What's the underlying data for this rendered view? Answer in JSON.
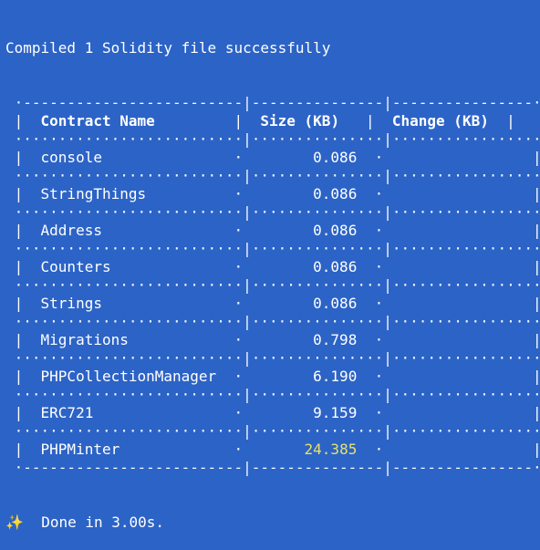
{
  "terminal": {
    "compile_message": "Compiled 1 Solidity file successfully",
    "table": {
      "headers": {
        "contract_name": "Contract Name",
        "size": "Size (KB)",
        "change": "Change (KB)"
      },
      "rows": [
        {
          "name": "console",
          "size": "0.086",
          "change": ""
        },
        {
          "name": "StringThings",
          "size": "0.086",
          "change": ""
        },
        {
          "name": "Address",
          "size": "0.086",
          "change": ""
        },
        {
          "name": "Counters",
          "size": "0.086",
          "change": ""
        },
        {
          "name": "Strings",
          "size": "0.086",
          "change": ""
        },
        {
          "name": "Migrations",
          "size": "0.798",
          "change": ""
        },
        {
          "name": "PHPCollectionManager",
          "size": "6.190",
          "change": ""
        },
        {
          "name": "ERC721",
          "size": "9.159",
          "change": ""
        },
        {
          "name": "PHPMinter",
          "size": "24.385",
          "change": "",
          "highlight": true
        }
      ]
    },
    "done_message": "Done in 3.00s.",
    "done_icon": "sparkles-icon",
    "highlight_color": "#e6e26c",
    "background_color": "#2c63c6"
  }
}
